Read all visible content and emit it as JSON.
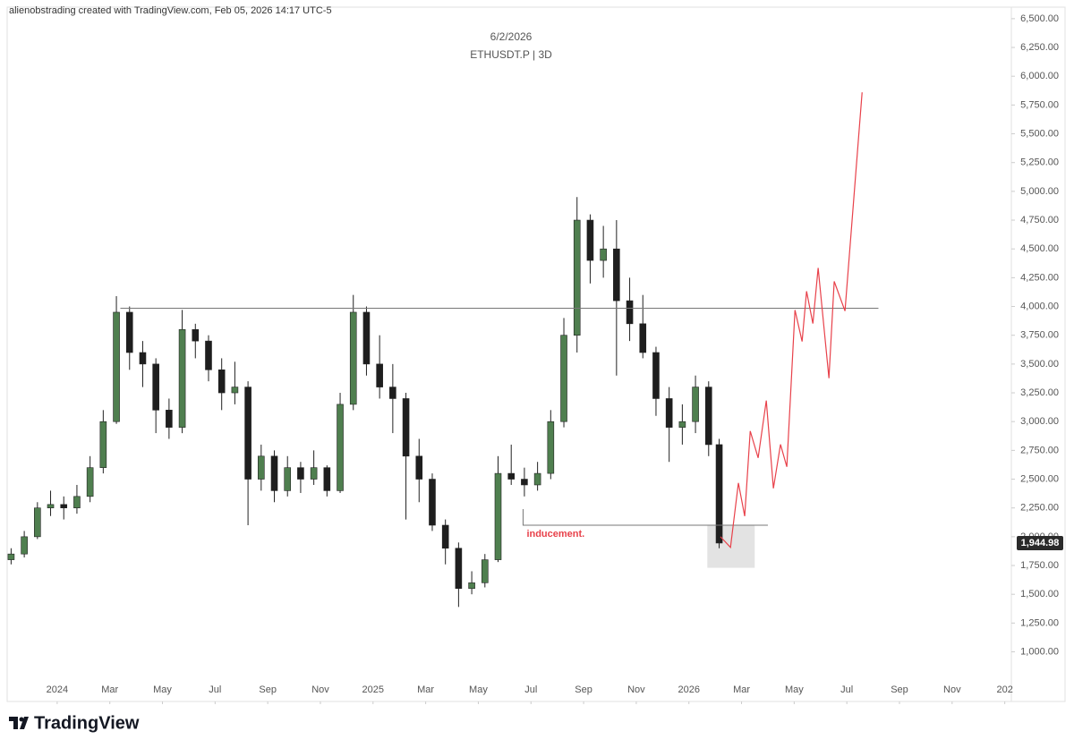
{
  "header": "alienobstrading created with TradingView.com, Feb 05, 2026 14:17 UTC-5",
  "footer": "TradingView",
  "chart_data": {
    "type": "candlestick",
    "title": "6/2/2026",
    "subtitle": "ETHUSDT.P | 3D",
    "up_color": "#4f7f4f",
    "down_color": "#1e1e1e",
    "x": [
      -1.75,
      -1.25,
      -0.75,
      -0.25,
      0.25,
      0.75,
      1.25,
      1.75,
      2.25,
      2.75,
      3.25,
      3.75,
      4.25,
      4.75,
      5.25,
      5.75,
      6.25,
      6.75,
      7.25,
      7.75,
      8.25,
      8.75,
      9.25,
      9.75,
      10.25,
      10.75,
      11.25,
      11.75,
      12.25,
      12.75,
      13.25,
      13.75,
      14.25,
      14.75,
      15.25,
      15.75,
      16.25,
      16.75,
      17.25,
      17.75,
      18.25,
      18.75,
      19.25,
      19.75,
      20.25,
      20.75,
      21.25,
      21.75,
      22.25,
      22.75,
      23.25,
      23.75,
      24.25,
      24.75,
      25.15
    ],
    "open": [
      1800,
      1850,
      2000,
      2250,
      2280,
      2250,
      2350,
      2600,
      3000,
      3950,
      3600,
      3500,
      3100,
      2950,
      3800,
      3700,
      3450,
      3250,
      3300,
      2500,
      2700,
      2400,
      2600,
      2500,
      2600,
      2400,
      3150,
      3950,
      3500,
      3300,
      3200,
      2700,
      2500,
      2100,
      1900,
      1550,
      1600,
      1800,
      2550,
      2500,
      2450,
      2550,
      3000,
      3750,
      4750,
      4400,
      4500,
      4050,
      3850,
      3600,
      3200,
      2950,
      3000,
      3300,
      2800
    ],
    "high": [
      1900,
      2050,
      2300,
      2400,
      2350,
      2450,
      2700,
      3100,
      4090,
      4000,
      3700,
      3550,
      3200,
      3970,
      3850,
      3750,
      3550,
      3520,
      3350,
      2800,
      2750,
      2700,
      2650,
      2750,
      2620,
      3250,
      4100,
      4000,
      3750,
      3500,
      3250,
      2850,
      2550,
      2150,
      1950,
      1700,
      1850,
      2700,
      2800,
      2600,
      2650,
      3100,
      3900,
      4950,
      4800,
      4700,
      4750,
      4250,
      4100,
      3650,
      3300,
      3150,
      3400,
      3350,
      2850
    ],
    "low": [
      1760,
      1820,
      1980,
      2180,
      2150,
      2200,
      2300,
      2550,
      2980,
      3450,
      3300,
      2900,
      2850,
      2900,
      3550,
      3350,
      3100,
      3150,
      2100,
      2400,
      2300,
      2350,
      2380,
      2450,
      2350,
      2380,
      3100,
      3400,
      3200,
      2900,
      2150,
      2300,
      2050,
      1760,
      1390,
      1500,
      1560,
      1780,
      2450,
      2350,
      2400,
      2500,
      2950,
      3600,
      4200,
      4250,
      3400,
      3700,
      3550,
      3050,
      2650,
      2800,
      2900,
      2700,
      1900
    ],
    "close": [
      1850,
      2000,
      2250,
      2280,
      2250,
      2350,
      2600,
      3000,
      3950,
      3600,
      3500,
      3100,
      2950,
      3800,
      3700,
      3450,
      3250,
      3300,
      2500,
      2700,
      2400,
      2600,
      2500,
      2600,
      2400,
      3150,
      3950,
      3500,
      3300,
      3200,
      2700,
      2500,
      2100,
      1900,
      1550,
      1600,
      1800,
      2550,
      2500,
      2450,
      2550,
      3000,
      3750,
      4750,
      4400,
      4500,
      4050,
      3850,
      3600,
      3200,
      2950,
      3000,
      3300,
      2800,
      1944.98
    ],
    "last_price": {
      "value": 1944.98,
      "label": "1,944.98"
    },
    "projection": {
      "color": "#e8414a",
      "x": [
        25.2,
        25.58,
        25.88,
        26.12,
        26.33,
        26.63,
        26.94,
        27.21,
        27.48,
        27.72,
        28.03,
        28.3,
        28.47,
        28.71,
        28.91,
        29.32,
        29.52,
        29.93,
        30.58
      ],
      "values": [
        2000,
        1907,
        2467,
        2179,
        2918,
        2685,
        3183,
        2420,
        2802,
        2607,
        3969,
        3696,
        4132,
        3852,
        4335,
        3377,
        4218,
        3961,
        5860
      ]
    },
    "resistance": {
      "value": 3985,
      "x": [
        2.4,
        31.2
      ]
    },
    "inducement": {
      "label": "inducement.",
      "value": 2100,
      "start": 2240,
      "x": [
        17.7,
        27.0
      ]
    },
    "zone": {
      "x": [
        24.7,
        26.5
      ],
      "y": [
        1730,
        2100
      ]
    },
    "xlim": [
      -1.9,
      36.25
    ],
    "xticks": [
      {
        "value": 0,
        "label": "2024"
      },
      {
        "value": 2,
        "label": "Mar"
      },
      {
        "value": 4,
        "label": "May"
      },
      {
        "value": 6,
        "label": "Jul"
      },
      {
        "value": 8,
        "label": "Sep"
      },
      {
        "value": 10,
        "label": "Nov"
      },
      {
        "value": 12,
        "label": "2025"
      },
      {
        "value": 14,
        "label": "Mar"
      },
      {
        "value": 16,
        "label": "May"
      },
      {
        "value": 18,
        "label": "Jul"
      },
      {
        "value": 20,
        "label": "Sep"
      },
      {
        "value": 22,
        "label": "Nov"
      },
      {
        "value": 24,
        "label": "2026"
      },
      {
        "value": 26,
        "label": "Mar"
      },
      {
        "value": 28,
        "label": "May"
      },
      {
        "value": 30,
        "label": "Jul"
      },
      {
        "value": 32,
        "label": "Sep"
      },
      {
        "value": 34,
        "label": "Nov"
      },
      {
        "value": 36,
        "label": "202"
      }
    ],
    "ylim": [
      600,
      6600
    ],
    "yticks": [
      {
        "value": 1000,
        "label": "1,000.00"
      },
      {
        "value": 1250,
        "label": "1,250.00"
      },
      {
        "value": 1500,
        "label": "1,500.00"
      },
      {
        "value": 1750,
        "label": "1,750.00"
      },
      {
        "value": 2000,
        "label": "2,000.00"
      },
      {
        "value": 2250,
        "label": "2,250.00"
      },
      {
        "value": 2500,
        "label": "2,500.00"
      },
      {
        "value": 2750,
        "label": "2,750.00"
      },
      {
        "value": 3000,
        "label": "3,000.00"
      },
      {
        "value": 3250,
        "label": "3,250.00"
      },
      {
        "value": 3500,
        "label": "3,500.00"
      },
      {
        "value": 3750,
        "label": "3,750.00"
      },
      {
        "value": 4000,
        "label": "4,000.00"
      },
      {
        "value": 4250,
        "label": "4,250.00"
      },
      {
        "value": 4500,
        "label": "4,500.00"
      },
      {
        "value": 4750,
        "label": "4,750.00"
      },
      {
        "value": 5000,
        "label": "5,000.00"
      },
      {
        "value": 5250,
        "label": "5,250.00"
      },
      {
        "value": 5500,
        "label": "5,500.00"
      },
      {
        "value": 5750,
        "label": "5,750.00"
      },
      {
        "value": 6000,
        "label": "6,000.00"
      },
      {
        "value": 6250,
        "label": "6,250.00"
      },
      {
        "value": 6500,
        "label": "6,500.00"
      }
    ]
  }
}
